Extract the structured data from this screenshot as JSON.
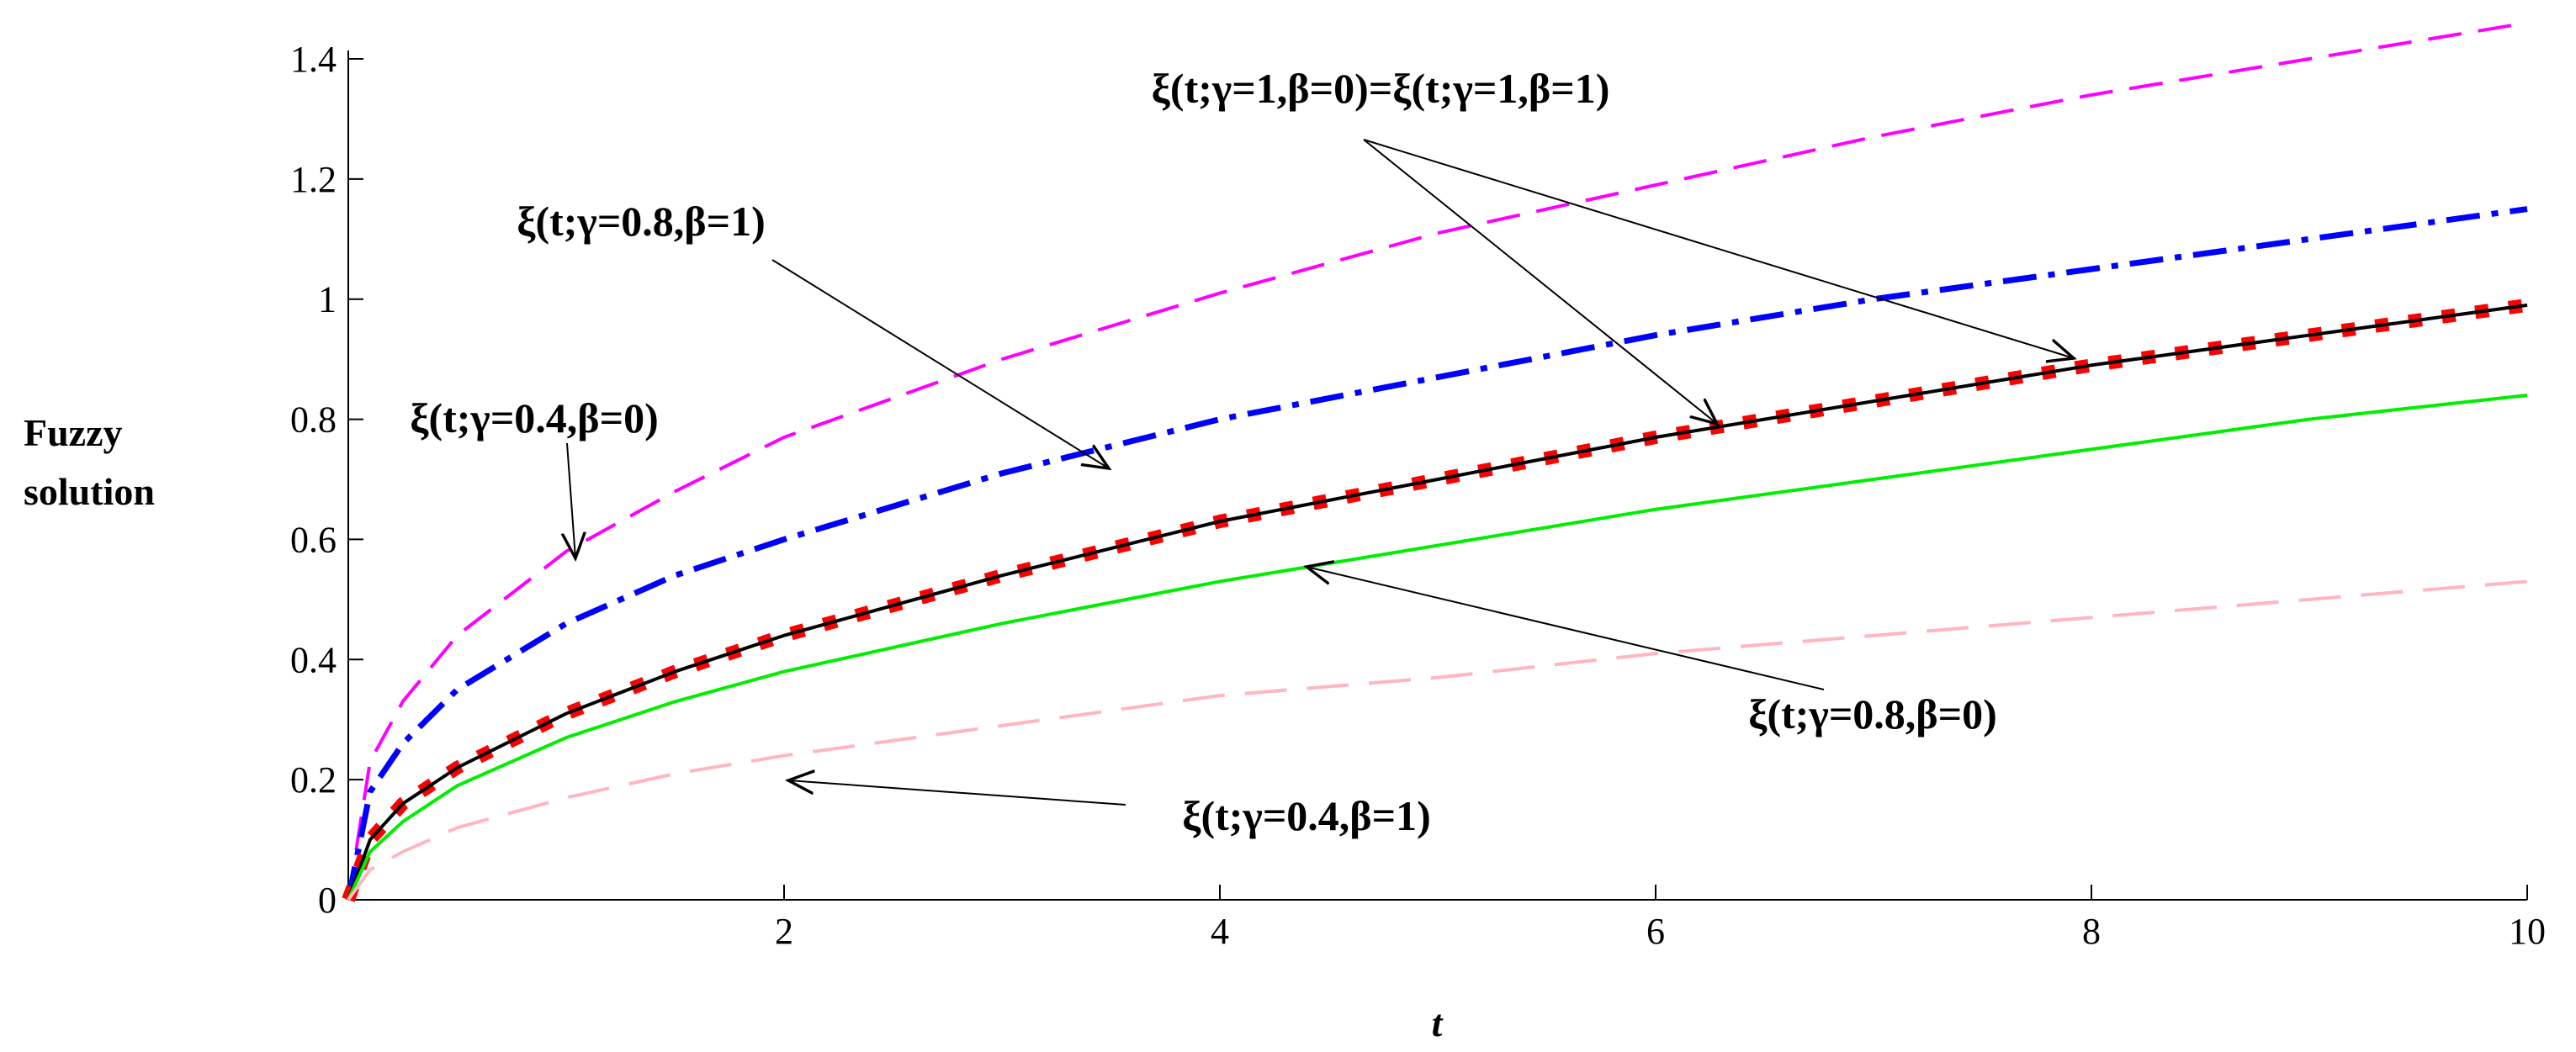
{
  "chart_data": {
    "type": "line",
    "x": [
      0,
      0.1,
      0.25,
      0.5,
      1,
      1.5,
      2,
      3,
      4,
      5,
      6,
      7,
      8,
      9,
      10
    ],
    "series": [
      {
        "color": "#ff00ff",
        "style": "dash",
        "values": [
          0,
          0.23,
          0.33,
          0.44,
          0.58,
          0.68,
          0.77,
          0.9,
          1.01,
          1.11,
          1.19,
          1.27,
          1.34,
          1.4,
          1.46
        ]
      },
      {
        "color": "#0000ff",
        "style": "dashdot",
        "values": [
          0,
          0.18,
          0.26,
          0.35,
          0.46,
          0.54,
          0.6,
          0.71,
          0.8,
          0.87,
          0.94,
          1.0,
          1.05,
          1.1,
          1.15
        ]
      },
      {
        "color": "#ff0000",
        "style": "dot",
        "values": [
          0,
          0.1,
          0.16,
          0.22,
          0.31,
          0.38,
          0.44,
          0.54,
          0.63,
          0.7,
          0.77,
          0.83,
          0.89,
          0.94,
          0.99
        ]
      },
      {
        "color": "#000000",
        "style": "solid",
        "values": [
          0,
          0.1,
          0.16,
          0.22,
          0.31,
          0.38,
          0.44,
          0.54,
          0.63,
          0.7,
          0.77,
          0.83,
          0.89,
          0.94,
          0.99
        ]
      },
      {
        "color": "#00ee00",
        "style": "solid",
        "values": [
          0,
          0.08,
          0.13,
          0.19,
          0.27,
          0.33,
          0.38,
          0.46,
          0.53,
          0.59,
          0.65,
          0.7,
          0.75,
          0.8,
          0.84
        ]
      },
      {
        "color": "#ffb6c1",
        "style": "longdash",
        "values": [
          0,
          0.05,
          0.08,
          0.12,
          0.17,
          0.21,
          0.24,
          0.29,
          0.34,
          0.37,
          0.41,
          0.44,
          0.47,
          0.5,
          0.53
        ]
      }
    ],
    "xlim": [
      0,
      10
    ],
    "ylim": [
      0,
      1.4
    ],
    "xticks": [
      2,
      4,
      6,
      8,
      10
    ],
    "yticks": [
      0,
      0.2,
      0.4,
      0.6,
      0.8,
      1,
      1.2,
      1.4
    ],
    "x_label": "t",
    "y_label": [
      "Fuzzy",
      "solution"
    ],
    "annotations": [
      "ξ(t;γ=1,β=0)=ξ(t;γ=1,β=1)",
      "ξ(t;γ=0.8,β=1)",
      "ξ(t;γ=0.4,β=0)",
      "ξ(t;γ=0.8,β=0)",
      "ξ(t;γ=0.4,β=1)"
    ]
  }
}
